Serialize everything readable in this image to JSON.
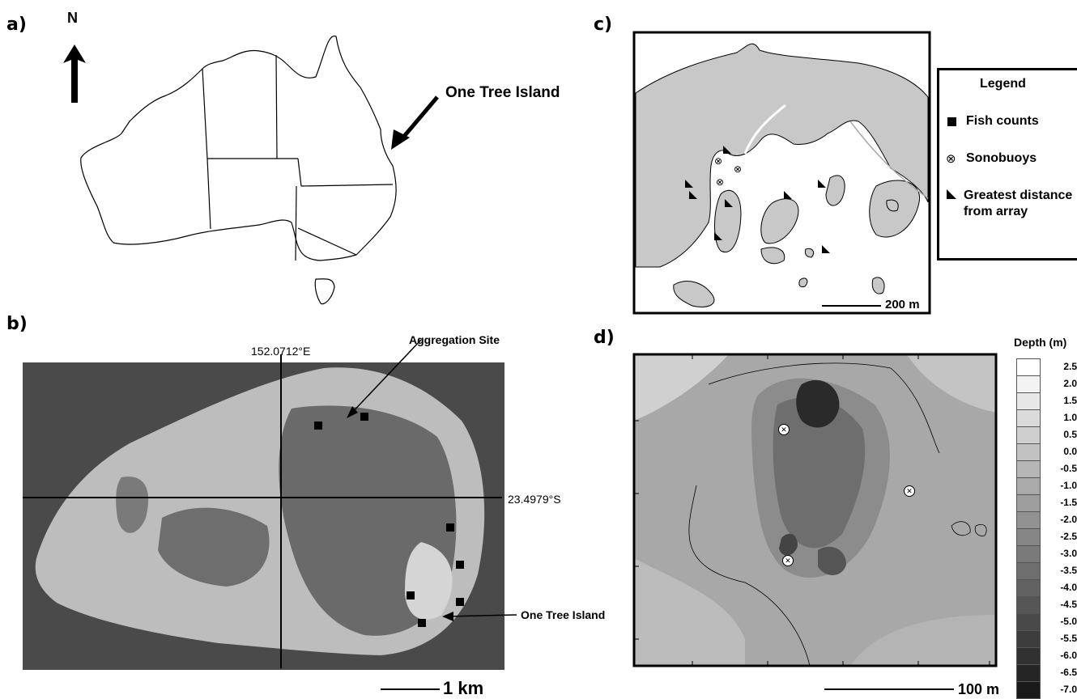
{
  "panels": {
    "a": {
      "letter": "a)",
      "north_label": "N",
      "callout": "One Tree Island"
    },
    "b": {
      "letter": "b)",
      "longitude": "152.0712°E",
      "latitude": "23.4979°S",
      "aggregation_label": "Aggregation Site",
      "island_label": "One Tree Island",
      "scale_label": "1 km",
      "fish_count_sites": 7
    },
    "c": {
      "letter": "c)",
      "scale_label": "200 m",
      "legend": {
        "title": "Legend",
        "items": [
          {
            "symbol": "filled-square",
            "label": "Fish counts"
          },
          {
            "symbol": "circled-x",
            "label": "Sonobuoys"
          },
          {
            "symbol": "filled-triangle",
            "label": "Greatest distance\nfrom array"
          }
        ]
      }
    },
    "d": {
      "letter": "d)",
      "scale_label": "100 m",
      "depth_title": "Depth (m)",
      "depth_ticks": [
        "2.5",
        "2.0",
        "1.5",
        "1.0",
        "0.5",
        "0.0",
        "-0.5",
        "-1.0",
        "-1.5",
        "-2.0",
        "-2.5",
        "-3.0",
        "-3.5",
        "-4.0",
        "-4.5",
        "-5.0",
        "-5.5",
        "-6.0",
        "-6.5",
        "-7.0"
      ]
    }
  },
  "colors": {
    "land": "#c8c8c8",
    "water": "#ffffff",
    "frame": "#000000",
    "photo_ocean": "#4a4a4a"
  }
}
